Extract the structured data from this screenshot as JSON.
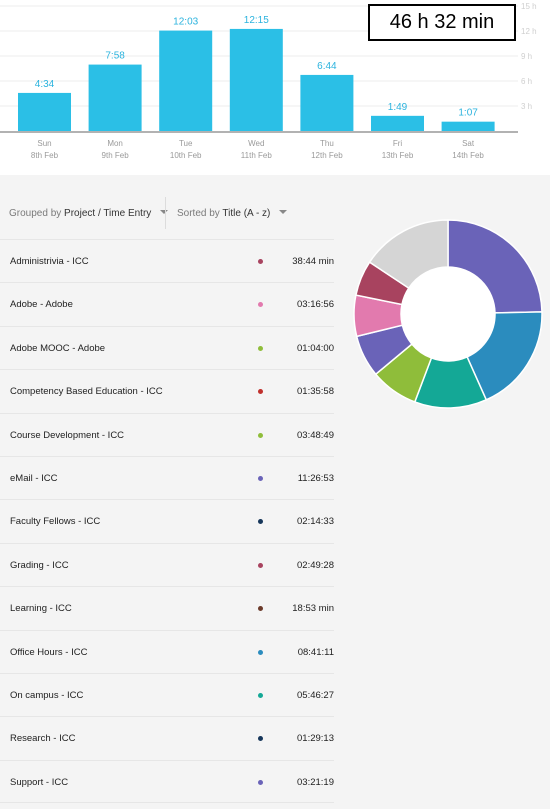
{
  "total_time": "46 h 32 min",
  "chart_data": {
    "type": "bar",
    "unit": "hours",
    "ylim": [
      0,
      15
    ],
    "yticks": [
      "3 h",
      "6 h",
      "9 h",
      "12 h",
      "15 h"
    ],
    "bar_color": "#2bbfe6",
    "bars": [
      {
        "day": "Sun",
        "date": "8th Feb",
        "label": "4:34",
        "hours": 4.57
      },
      {
        "day": "Mon",
        "date": "9th Feb",
        "label": "7:58",
        "hours": 7.97
      },
      {
        "day": "Tue",
        "date": "10th Feb",
        "label": "12:03",
        "hours": 12.05
      },
      {
        "day": "Wed",
        "date": "11th Feb",
        "label": "12:15",
        "hours": 12.25
      },
      {
        "day": "Thu",
        "date": "12th Feb",
        "label": "6:44",
        "hours": 6.73
      },
      {
        "day": "Fri",
        "date": "13th Feb",
        "label": "1:49",
        "hours": 1.82
      },
      {
        "day": "Sat",
        "date": "14th Feb",
        "label": "1:07",
        "hours": 1.12
      }
    ]
  },
  "controls": {
    "group_prefix": "Grouped by",
    "group_value": "Project / Time Entry",
    "sort_prefix": "Sorted by",
    "sort_value": "Title (A - z)"
  },
  "entries": [
    {
      "label": "Administrivia - ICC",
      "duration": "38:44 min",
      "color": "#a8435f"
    },
    {
      "label": "Adobe - Adobe",
      "duration": "03:16:56",
      "color": "#e27aae"
    },
    {
      "label": "Adobe MOOC - Adobe",
      "duration": "01:04:00",
      "color": "#8fbd3a"
    },
    {
      "label": "Competency Based Education - ICC",
      "duration": "01:35:58",
      "color": "#c0302c"
    },
    {
      "label": "Course Development - ICC",
      "duration": "03:48:49",
      "color": "#8fbd3a"
    },
    {
      "label": "eMail - ICC",
      "duration": "11:26:53",
      "color": "#6a63b8"
    },
    {
      "label": "Faculty Fellows - ICC",
      "duration": "02:14:33",
      "color": "#16365a"
    },
    {
      "label": "Grading - ICC",
      "duration": "02:49:28",
      "color": "#a8435f"
    },
    {
      "label": "Learning - ICC",
      "duration": "18:53 min",
      "color": "#6b3a2a"
    },
    {
      "label": "Office Hours - ICC",
      "duration": "08:41:11",
      "color": "#2b8cbe"
    },
    {
      "label": "On campus - ICC",
      "duration": "05:46:27",
      "color": "#14a896"
    },
    {
      "label": "Research - ICC",
      "duration": "01:29:13",
      "color": "#16365a"
    },
    {
      "label": "Support - ICC",
      "duration": "03:21:19",
      "color": "#6a63b8"
    }
  ],
  "donut": {
    "type": "pie",
    "segments": [
      {
        "value": 11.45,
        "color": "#6a63b8"
      },
      {
        "value": 8.69,
        "color": "#2b8cbe"
      },
      {
        "value": 5.77,
        "color": "#14a896"
      },
      {
        "value": 3.81,
        "color": "#8fbd3a"
      },
      {
        "value": 3.36,
        "color": "#6a63b8"
      },
      {
        "value": 3.28,
        "color": "#e27aae"
      },
      {
        "value": 2.82,
        "color": "#a8435f"
      },
      {
        "value": 7.3,
        "color": "#d5d5d5"
      }
    ]
  }
}
